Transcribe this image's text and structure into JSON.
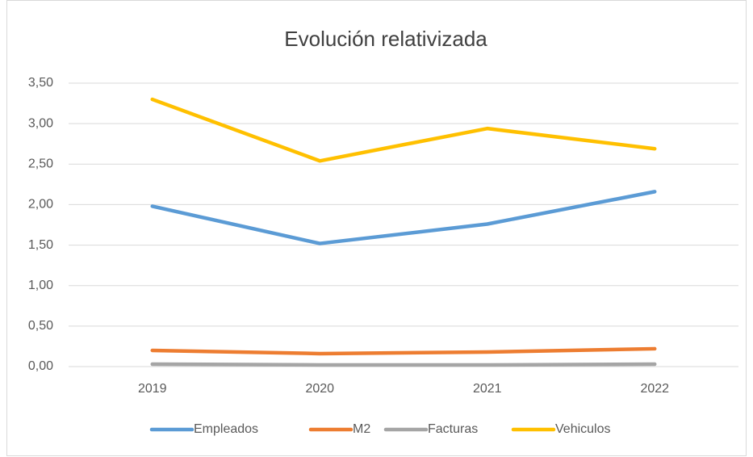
{
  "chart_data": {
    "type": "line",
    "title": "Evolución relativizada",
    "categories": [
      "2019",
      "2020",
      "2021",
      "2022"
    ],
    "series": [
      {
        "name": "Empleados",
        "color": "#5b9bd5",
        "values": [
          1.98,
          1.52,
          1.76,
          2.16
        ]
      },
      {
        "name": "M2",
        "color": "#ed7d31",
        "values": [
          0.2,
          0.16,
          0.18,
          0.22
        ]
      },
      {
        "name": "Facturas",
        "color": "#a5a5a5",
        "values": [
          0.03,
          0.02,
          0.02,
          0.03
        ]
      },
      {
        "name": "Vehiculos",
        "color": "#ffc000",
        "values": [
          3.3,
          2.54,
          2.94,
          2.69
        ]
      }
    ],
    "ylim": [
      0,
      3.5
    ],
    "yticks": [
      {
        "value": 0,
        "label": "0,00"
      },
      {
        "value": 0.5,
        "label": "0,50"
      },
      {
        "value": 1,
        "label": "1,00"
      },
      {
        "value": 1.5,
        "label": "1,50"
      },
      {
        "value": 2,
        "label": "2,00"
      },
      {
        "value": 2.5,
        "label": "2,50"
      },
      {
        "value": 3,
        "label": "3,00"
      },
      {
        "value": 3.5,
        "label": "3,50"
      }
    ],
    "grid": true,
    "legend": "bottom"
  }
}
